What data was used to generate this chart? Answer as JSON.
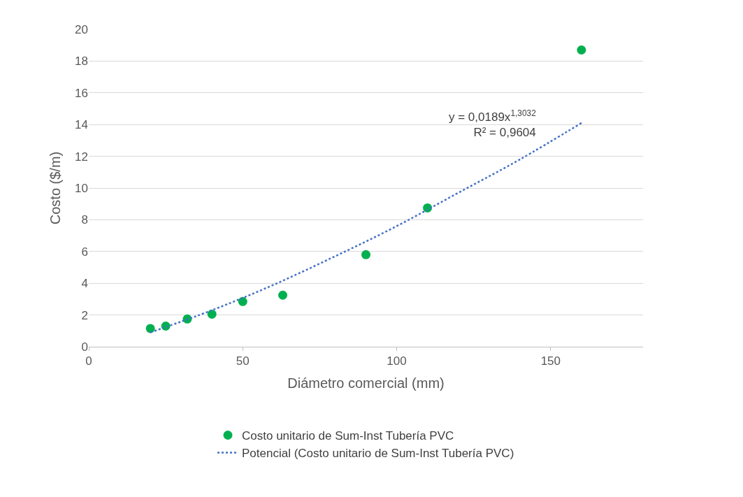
{
  "chart_data": {
    "type": "scatter",
    "xlabel": "Diámetro comercial (mm)",
    "ylabel": "Costo ($/m)",
    "xlim": [
      0,
      180
    ],
    "xticks": [
      0,
      50,
      100,
      150
    ],
    "ylim": [
      0,
      20
    ],
    "yticks": [
      0,
      2,
      4,
      6,
      8,
      10,
      12,
      14,
      16,
      18,
      20
    ],
    "grid": "y",
    "legend": "bottom",
    "series": [
      {
        "name": "Costo unitario de Sum-Inst Tubería PVC",
        "marker": "circle",
        "color": "#00b050",
        "x": [
          20,
          25,
          32,
          40,
          50,
          63,
          90,
          110,
          160
        ],
        "values": [
          1.15,
          1.3,
          1.75,
          2.05,
          2.85,
          3.25,
          5.8,
          8.75,
          18.7
        ]
      },
      {
        "name": "Potencial (Costo unitario de Sum-Inst Tubería PVC)",
        "type": "line",
        "line_style": "dotted",
        "color": "#4472c4",
        "x": [
          20,
          40,
          60,
          80,
          100,
          120,
          140,
          160
        ],
        "values": [
          0.9,
          2.3,
          3.9,
          5.7,
          7.6,
          9.7,
          11.8,
          14.1
        ]
      }
    ],
    "annotations": [
      "y = 0,0189x$^{1,3032}$\nR² = 0,9604"
    ]
  }
}
